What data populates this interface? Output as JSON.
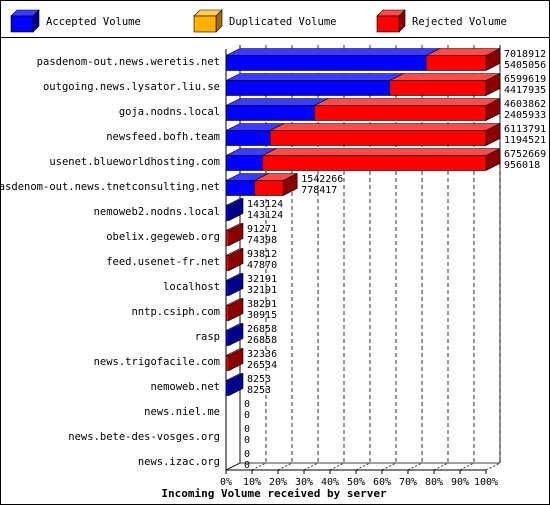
{
  "chart_data": {
    "type": "bar",
    "orientation": "horizontal",
    "stacked": true,
    "title": "Incoming Volume received by server",
    "legend_position": "top",
    "grid": true,
    "x_ticks": [
      "0%",
      "10%",
      "20%",
      "30%",
      "40%",
      "50%",
      "60%",
      "70%",
      "80%",
      "90%",
      "100%"
    ],
    "xlim": [
      0,
      100
    ],
    "legend": [
      {
        "name": "Accepted Volume",
        "color": "#0000ff"
      },
      {
        "name": "Duplicated Volume",
        "color": "#ffb000"
      },
      {
        "name": "Rejected Volume",
        "color": "#ff0000"
      }
    ],
    "categories": [
      "pasdenom-out.news.weretis.net",
      "outgoing.news.lysator.liu.se",
      "goja.nodns.local",
      "newsfeed.bofh.team",
      "usenet.blueworldhosting.com",
      "pasdenom-out.news.tnetconsulting.net",
      "nemoweb2.nodns.local",
      "obelix.gegeweb.org",
      "feed.usenet-fr.net",
      "localhost",
      "nntp.csiph.com",
      "rasp",
      "news.trigofacile.com",
      "nemoweb.net",
      "news.niel.me",
      "news.bete-des-vosges.org",
      "news.izac.org"
    ],
    "value_labels": [
      [
        "7018912",
        "5405056"
      ],
      [
        "6599619",
        "4417935"
      ],
      [
        "4603862",
        "2405933"
      ],
      [
        "6113791",
        "1194521"
      ],
      [
        "6752669",
        "956018"
      ],
      [
        "1542266",
        "778417"
      ],
      [
        "143124",
        "143124"
      ],
      [
        "91271",
        "74398"
      ],
      [
        "93812",
        "47870"
      ],
      [
        "32191",
        "32191"
      ],
      [
        "38291",
        "30915"
      ],
      [
        "26858",
        "26858"
      ],
      [
        "32336",
        "26534"
      ],
      [
        "8253",
        "8253"
      ],
      [
        "0",
        "0"
      ],
      [
        "0",
        "0"
      ],
      [
        "0",
        "0"
      ]
    ],
    "series": [
      {
        "name": "Accepted Volume",
        "color": "#0000ff",
        "values": [
          77,
          63,
          34,
          17,
          14,
          11,
          0,
          0,
          0,
          0,
          0,
          0,
          0,
          0,
          0,
          0,
          0
        ]
      },
      {
        "name": "Duplicated Volume",
        "color": "#ffb000",
        "values": [
          0,
          0,
          0,
          0,
          0,
          0,
          0,
          0,
          0,
          0,
          0,
          0,
          0,
          0,
          0,
          0,
          0
        ]
      },
      {
        "name": "Rejected Volume",
        "color": "#ff0000",
        "values": [
          23,
          37,
          66,
          83,
          86,
          11,
          0,
          0,
          0,
          0,
          0,
          0,
          0,
          0,
          0,
          0,
          0
        ]
      }
    ],
    "small_bar_color": [
      "blue",
      "blue",
      "blue",
      "blue",
      "blue",
      "blue",
      "blue",
      "red",
      "red",
      "blue",
      "red",
      "blue",
      "red",
      "blue",
      "none",
      "none",
      "none"
    ]
  }
}
